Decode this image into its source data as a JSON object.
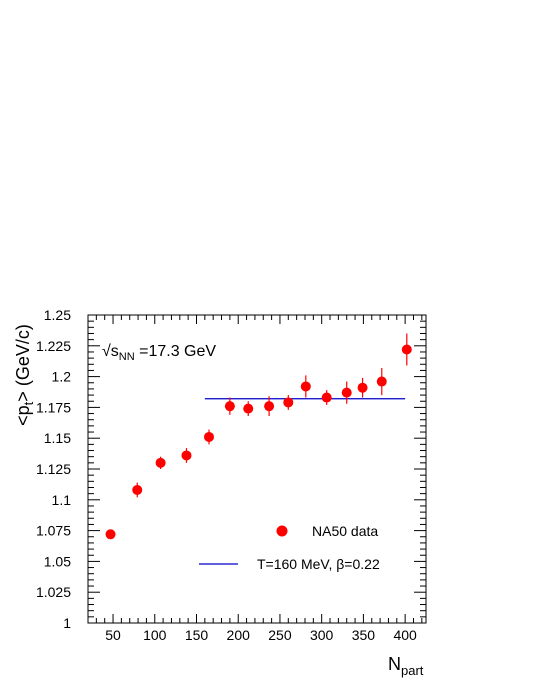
{
  "chart_data": {
    "type": "scatter",
    "xlabel_main": "N",
    "xlabel_sub": "part",
    "ylabel_pre": "<p",
    "ylabel_sub": "t",
    "ylabel_post": "> (GeV/c)",
    "annotation": {
      "sqrt": "√",
      "s": "s",
      "sub": "NN",
      "rest": " =17.3 GeV"
    },
    "xlim": [
      20,
      425
    ],
    "ylim": [
      1.0,
      1.25
    ],
    "x_ticks": [
      50,
      100,
      150,
      200,
      250,
      300,
      350,
      400
    ],
    "x_tick_labels": [
      "50",
      "100",
      "150",
      "200",
      "250",
      "300",
      "350",
      "400"
    ],
    "y_ticks": [
      1,
      1.025,
      1.05,
      1.075,
      1.1,
      1.125,
      1.15,
      1.175,
      1.2,
      1.225,
      1.25
    ],
    "y_tick_labels": [
      "1",
      "1.025",
      "1.05",
      "1.075",
      "1.1",
      "1.125",
      "1.15",
      "1.175",
      "1.2",
      "1.225",
      "1.25"
    ],
    "legend": [
      {
        "label": "NA50 data",
        "marker": "circle",
        "color": "#ff0000"
      },
      {
        "label": "T=160 MeV, β=0.22",
        "marker": "line",
        "color": "#0000cc"
      }
    ],
    "series": [
      {
        "name": "NA50 data",
        "color": "#ff0000",
        "points": [
          {
            "x": 47,
            "y": 1.072,
            "err": 0.003
          },
          {
            "x": 79,
            "y": 1.108,
            "err": 0.006
          },
          {
            "x": 107,
            "y": 1.13,
            "err": 0.005
          },
          {
            "x": 138,
            "y": 1.136,
            "err": 0.006
          },
          {
            "x": 165,
            "y": 1.151,
            "err": 0.006
          },
          {
            "x": 190,
            "y": 1.176,
            "err": 0.007
          },
          {
            "x": 212,
            "y": 1.174,
            "err": 0.006
          },
          {
            "x": 237,
            "y": 1.176,
            "err": 0.008
          },
          {
            "x": 260,
            "y": 1.179,
            "err": 0.006
          },
          {
            "x": 281,
            "y": 1.192,
            "err": 0.009
          },
          {
            "x": 306,
            "y": 1.183,
            "err": 0.006
          },
          {
            "x": 330,
            "y": 1.187,
            "err": 0.009
          },
          {
            "x": 349,
            "y": 1.191,
            "err": 0.008
          },
          {
            "x": 372,
            "y": 1.196,
            "err": 0.011
          },
          {
            "x": 402,
            "y": 1.222,
            "err": 0.013
          }
        ]
      },
      {
        "name": "T=160 MeV, β=0.22",
        "color": "#0000cc",
        "line": {
          "x": [
            160,
            400
          ],
          "y": [
            1.182,
            1.182
          ]
        }
      }
    ]
  }
}
